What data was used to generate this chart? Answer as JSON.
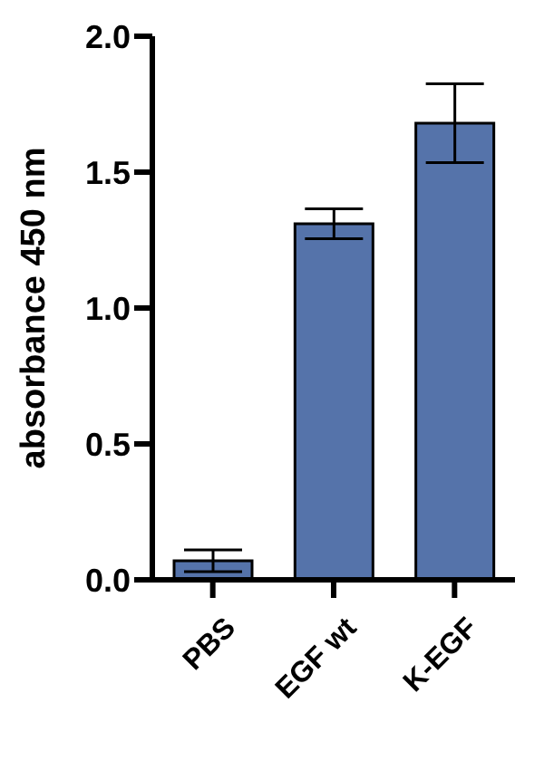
{
  "chart_data": {
    "type": "bar",
    "ylabel": "absorbance 450 nm",
    "categories": [
      "PBS",
      "EGF wt",
      "K-EGF"
    ],
    "values": [
      0.07,
      1.31,
      1.68
    ],
    "errors": [
      0.04,
      0.055,
      0.145
    ],
    "color": "#5573aa",
    "ylim": [
      0,
      2
    ],
    "yticks": [
      {
        "value": 0,
        "label": "0.0"
      },
      {
        "value": 0.5,
        "label": "0.5"
      },
      {
        "value": 1,
        "label": "1.0"
      },
      {
        "value": 1.5,
        "label": "1.5"
      },
      {
        "value": 2,
        "label": "2.0"
      }
    ],
    "grid": false
  }
}
